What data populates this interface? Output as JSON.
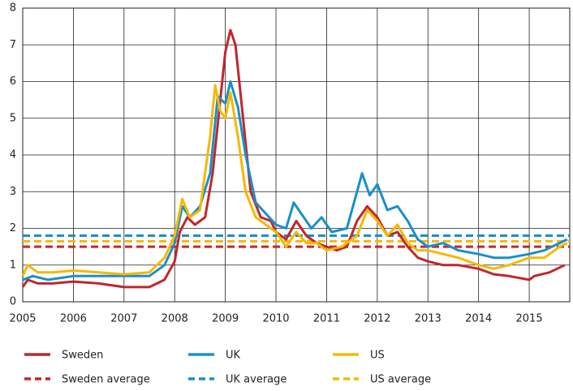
{
  "chart_data": {
    "type": "line",
    "xlim": [
      2005,
      2015.8
    ],
    "xticks": [
      2005,
      2006,
      2007,
      2008,
      2009,
      2010,
      2011,
      2012,
      2013,
      2014,
      2015
    ],
    "ylim": [
      0,
      8
    ],
    "yticks": [
      0,
      1,
      2,
      3,
      4,
      5,
      6,
      7,
      8
    ],
    "grid": true,
    "series": [
      {
        "name": "Sweden",
        "color": "#c0272d",
        "x": [
          2005.0,
          2005.1,
          2005.3,
          2005.6,
          2006.0,
          2006.5,
          2007.0,
          2007.5,
          2007.8,
          2008.0,
          2008.1,
          2008.25,
          2008.4,
          2008.6,
          2008.75,
          2008.9,
          2009.0,
          2009.1,
          2009.2,
          2009.35,
          2009.5,
          2009.7,
          2009.9,
          2010.0,
          2010.2,
          2010.4,
          2010.6,
          2010.8,
          2011.0,
          2011.2,
          2011.4,
          2011.6,
          2011.8,
          2012.0,
          2012.2,
          2012.4,
          2012.6,
          2012.8,
          2013.0,
          2013.3,
          2013.6,
          2014.0,
          2014.3,
          2014.6,
          2015.0,
          2015.1,
          2015.4,
          2015.7
        ],
        "values": [
          0.4,
          0.6,
          0.5,
          0.5,
          0.55,
          0.5,
          0.4,
          0.4,
          0.6,
          1.1,
          1.9,
          2.3,
          2.1,
          2.3,
          3.5,
          5.5,
          6.8,
          7.4,
          7.0,
          5.0,
          3.0,
          2.3,
          2.2,
          1.9,
          1.7,
          2.2,
          1.8,
          1.6,
          1.5,
          1.4,
          1.5,
          2.2,
          2.6,
          2.3,
          1.8,
          1.9,
          1.5,
          1.2,
          1.1,
          1.0,
          1.0,
          0.9,
          0.75,
          0.7,
          0.6,
          0.7,
          0.8,
          1.0
        ]
      },
      {
        "name": "UK",
        "color": "#1a8fc9",
        "x": [
          2005.0,
          2005.2,
          2005.5,
          2006.0,
          2006.5,
          2007.0,
          2007.5,
          2007.8,
          2008.0,
          2008.15,
          2008.3,
          2008.5,
          2008.7,
          2008.85,
          2009.0,
          2009.1,
          2009.25,
          2009.4,
          2009.6,
          2009.8,
          2010.0,
          2010.2,
          2010.35,
          2010.5,
          2010.7,
          2010.9,
          2011.1,
          2011.4,
          2011.6,
          2011.7,
          2011.85,
          2012.0,
          2012.2,
          2012.4,
          2012.6,
          2012.8,
          2013.0,
          2013.3,
          2013.6,
          2014.0,
          2014.3,
          2014.6,
          2015.0,
          2015.3,
          2015.6,
          2015.75
        ],
        "values": [
          0.6,
          0.7,
          0.6,
          0.7,
          0.7,
          0.7,
          0.7,
          1.0,
          1.6,
          2.6,
          2.3,
          2.6,
          3.5,
          5.6,
          5.4,
          6.0,
          5.3,
          4.0,
          2.7,
          2.4,
          2.1,
          2.0,
          2.7,
          2.4,
          2.0,
          2.3,
          1.9,
          2.0,
          3.0,
          3.5,
          2.9,
          3.2,
          2.5,
          2.6,
          2.2,
          1.7,
          1.5,
          1.6,
          1.4,
          1.3,
          1.2,
          1.2,
          1.3,
          1.4,
          1.6,
          1.7
        ]
      },
      {
        "name": "US",
        "color": "#f5b800",
        "x": [
          2005.0,
          2005.1,
          2005.3,
          2005.6,
          2006.0,
          2006.5,
          2007.0,
          2007.5,
          2007.8,
          2008.0,
          2008.15,
          2008.3,
          2008.5,
          2008.7,
          2008.8,
          2008.9,
          2009.0,
          2009.1,
          2009.25,
          2009.4,
          2009.6,
          2009.8,
          2010.0,
          2010.2,
          2010.4,
          2010.6,
          2010.8,
          2011.0,
          2011.3,
          2011.6,
          2011.8,
          2012.0,
          2012.2,
          2012.4,
          2012.6,
          2012.8,
          2013.0,
          2013.3,
          2013.6,
          2014.0,
          2014.3,
          2014.6,
          2015.0,
          2015.3,
          2015.6,
          2015.75
        ],
        "values": [
          0.7,
          1.0,
          0.8,
          0.8,
          0.85,
          0.8,
          0.75,
          0.8,
          1.2,
          1.8,
          2.8,
          2.3,
          2.5,
          4.5,
          5.9,
          5.2,
          5.0,
          5.7,
          4.5,
          3.0,
          2.3,
          2.1,
          1.9,
          1.5,
          1.9,
          1.6,
          1.6,
          1.4,
          1.5,
          1.8,
          2.5,
          2.2,
          1.8,
          2.1,
          1.6,
          1.4,
          1.4,
          1.3,
          1.2,
          1.0,
          0.9,
          1.0,
          1.2,
          1.2,
          1.5,
          1.6
        ]
      }
    ],
    "averages": [
      {
        "name": "Sweden average",
        "color": "#c0272d",
        "value": 1.5
      },
      {
        "name": "UK average",
        "color": "#1a8fc9",
        "value": 1.8
      },
      {
        "name": "US average",
        "color": "#f5b800",
        "value": 1.65
      }
    ]
  }
}
